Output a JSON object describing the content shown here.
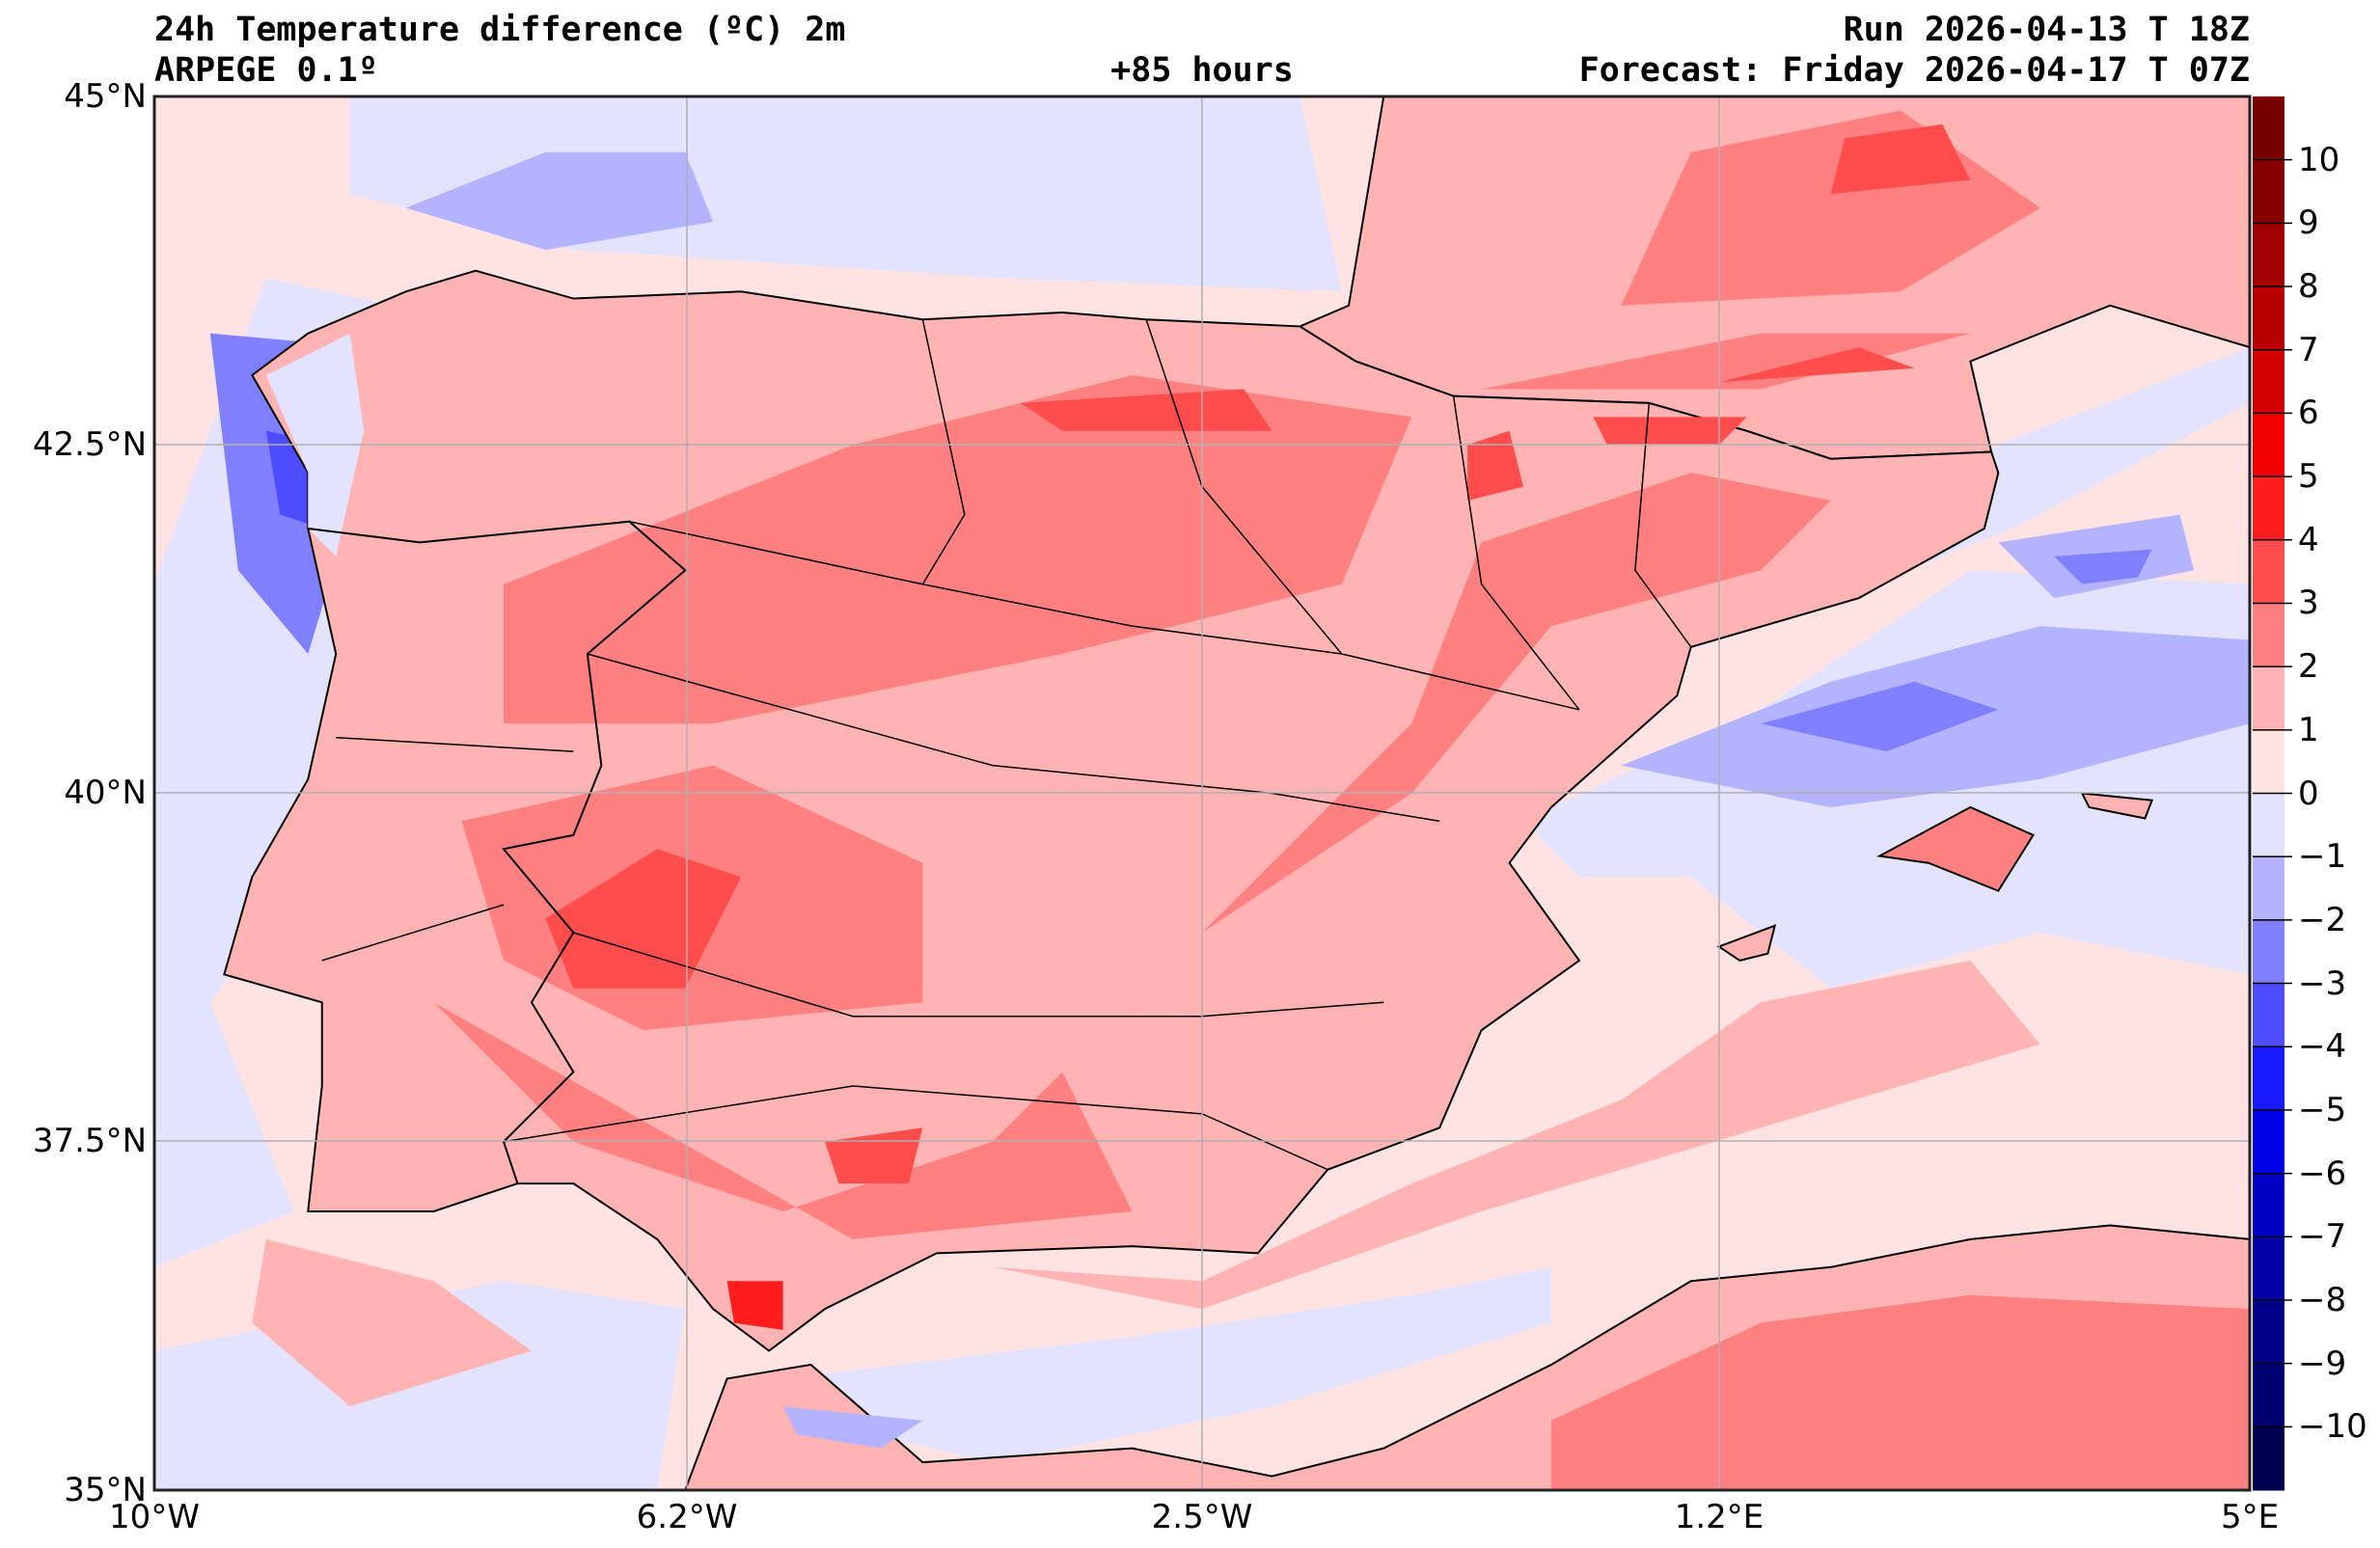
{
  "header": {
    "title": "24h Temperature difference (ºC) 2m",
    "model": "ARPEGE 0.1º",
    "lead_time": "+85 hours",
    "run": "Run 2026-04-13 T 18Z",
    "forecast": "Forecast: Friday 2026-04-17 T 07Z"
  },
  "chart_data": {
    "type": "heatmap",
    "title": "24h Temperature difference (ºC) 2m",
    "region": "Iberian Peninsula",
    "lon_range": [
      -10,
      5
    ],
    "lat_range": [
      35,
      45
    ],
    "x_ticks": [
      "10°W",
      "6.2°W",
      "2.5°W",
      "1.2°E",
      "5°E"
    ],
    "y_ticks": [
      "45°N",
      "42.5°N",
      "40°N",
      "37.5°N",
      "35°N"
    ],
    "grid": true,
    "colorbar": {
      "levels": [
        -11,
        -10,
        -9,
        -8,
        -7,
        -6,
        -5,
        -4,
        -3,
        -2,
        -1,
        0,
        1,
        2,
        3,
        4,
        5,
        6,
        7,
        8,
        9,
        10,
        11
      ],
      "tick_labels": [
        "−10",
        "−9",
        "−8",
        "−7",
        "−6",
        "−5",
        "−4",
        "−3",
        "−2",
        "−1",
        "0",
        "1",
        "2",
        "3",
        "4",
        "5",
        "6",
        "7",
        "8",
        "9",
        "10"
      ],
      "colors": [
        "#000050",
        "#000070",
        "#000088",
        "#0000a4",
        "#0000c4",
        "#0000e8",
        "#1a1aff",
        "#4d4dff",
        "#8080ff",
        "#b3b3ff",
        "#e3e3ff",
        "#ffe3e3",
        "#ffb3b3",
        "#ff8080",
        "#ff4d4d",
        "#ff1c1c",
        "#f00000",
        "#d40000",
        "#b80000",
        "#a00000",
        "#880000",
        "#780000"
      ],
      "placement": "right"
    },
    "summary": {
      "land_iberia": "mostly +1 to +4 warming, local +4 to +5 near Strait of Gibraltar",
      "galicia_coast": "-1 to -4",
      "balearic_sea": "-1 to -3",
      "south_sea": "0 to +2"
    }
  }
}
